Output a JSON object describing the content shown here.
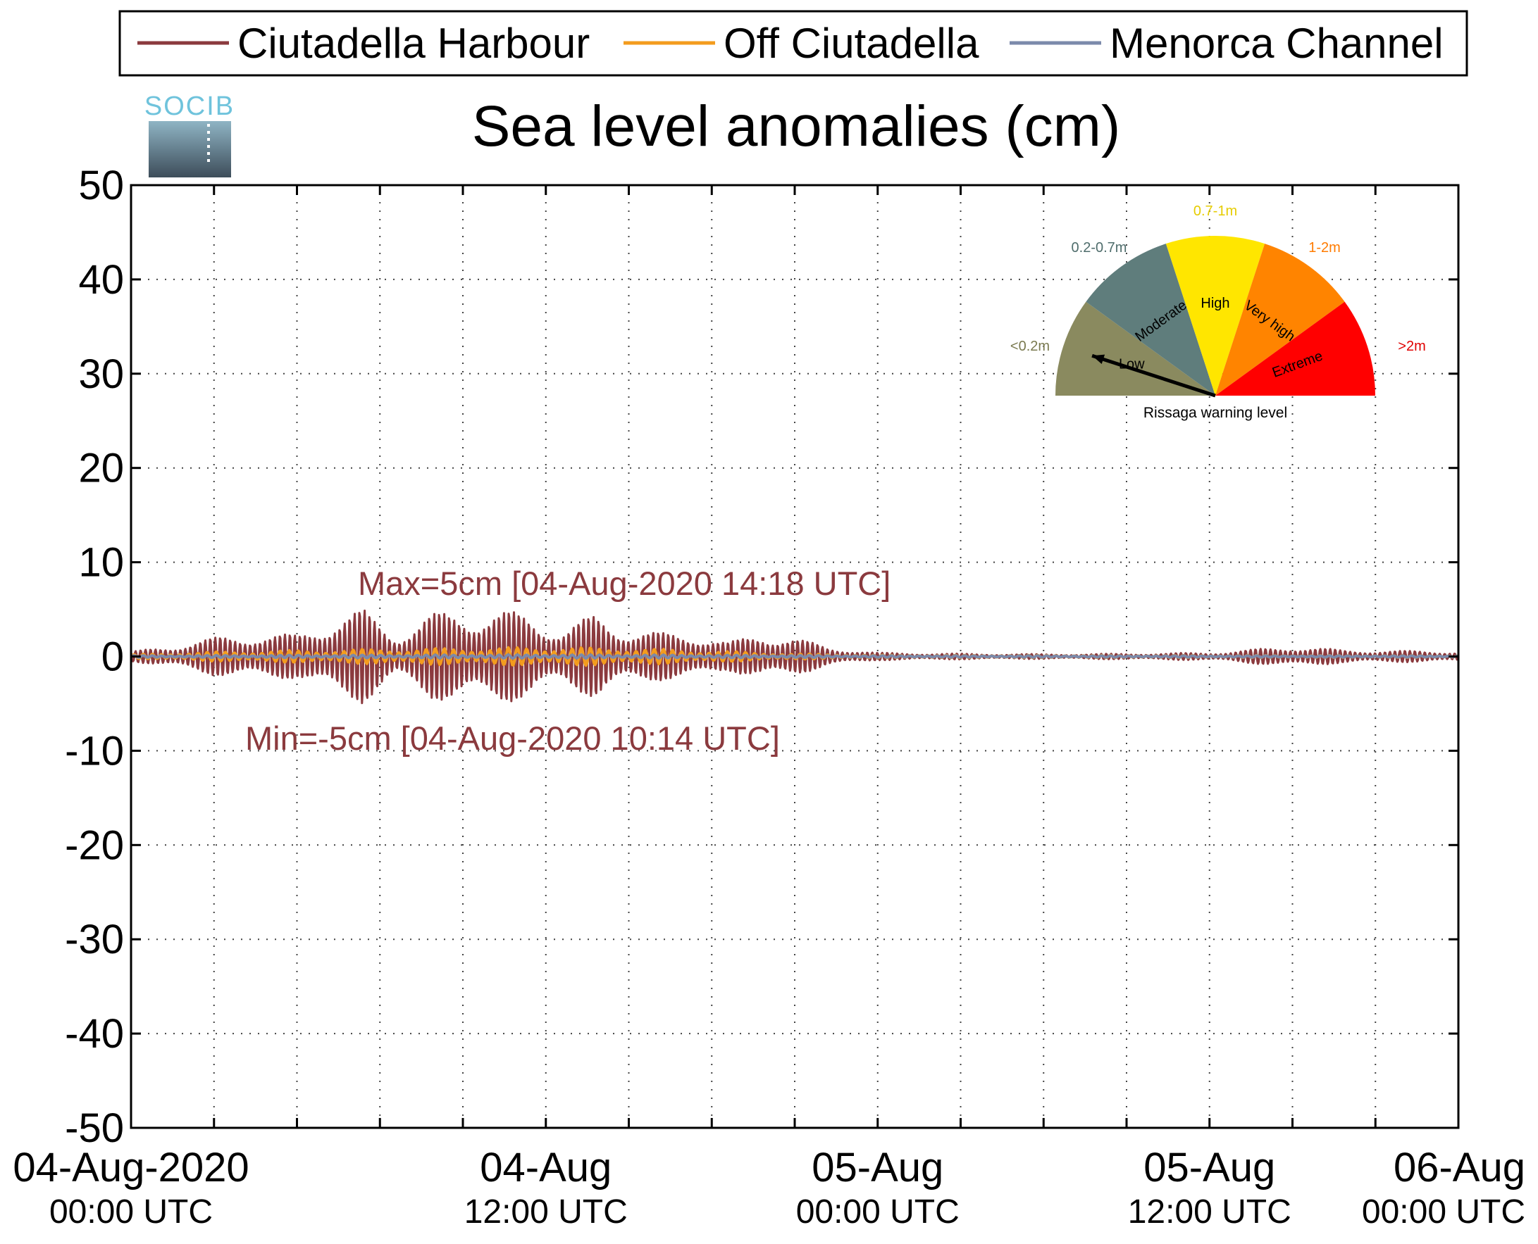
{
  "chart_data": {
    "type": "line",
    "title": "Sea level anomalies (cm)",
    "logo_text": "SOCIB",
    "ylim": [
      -50,
      50
    ],
    "yticks": [
      50,
      40,
      30,
      20,
      10,
      0,
      -10,
      -20,
      -30,
      -40,
      -50
    ],
    "xlim_hours": [
      -10,
      150
    ],
    "x_major_ticks": [
      {
        "hour": 0,
        "line1": "04-Aug-2020",
        "line2": "00:00 UTC"
      },
      {
        "hour": 40,
        "line1": "04-Aug",
        "line2": "12:00 UTC"
      },
      {
        "hour": 80,
        "line1": "05-Aug",
        "line2": "00:00 UTC"
      },
      {
        "hour": 120,
        "line1": "05-Aug",
        "line2": "12:00 UTC"
      },
      {
        "hour": 160,
        "line1": "06-Aug",
        "line2": "00:00 UTC"
      }
    ],
    "x_minor_ticks_hours": [
      0,
      10,
      20,
      30,
      40,
      50,
      60,
      70,
      80,
      90,
      100,
      110,
      120,
      130,
      140
    ],
    "grid": true,
    "legend_position": "top",
    "series": [
      {
        "name": "Ciutadella Harbour",
        "color": "#8b3a3e",
        "envelope": [
          [
            -10,
            0.5
          ],
          [
            -5,
            1.2
          ],
          [
            0,
            2.0
          ],
          [
            5,
            2.5
          ],
          [
            10,
            2.3
          ],
          [
            15,
            4.5
          ],
          [
            18,
            5
          ],
          [
            22,
            2.5
          ],
          [
            26,
            4.5
          ],
          [
            30,
            5.0
          ],
          [
            34,
            5.0
          ],
          [
            38,
            4.5
          ],
          [
            42,
            3.0
          ],
          [
            46,
            4.5
          ],
          [
            50,
            3.0
          ],
          [
            54,
            2.5
          ],
          [
            58,
            2.5
          ],
          [
            62,
            1.5
          ],
          [
            66,
            2.5
          ],
          [
            70,
            2.0
          ],
          [
            74,
            1.0
          ],
          [
            80,
            0.4
          ],
          [
            90,
            0.3
          ],
          [
            100,
            0.25
          ],
          [
            110,
            0.3
          ],
          [
            120,
            0.4
          ],
          [
            126,
            0.8
          ],
          [
            130,
            1.1
          ],
          [
            136,
            0.7
          ],
          [
            142,
            0.6
          ],
          [
            146,
            0.6
          ],
          [
            150,
            0.5
          ]
        ]
      },
      {
        "name": "Off Ciutadella",
        "color": "#f39c1e",
        "envelope": [
          [
            -10,
            0.2
          ],
          [
            0,
            0.5
          ],
          [
            20,
            0.8
          ],
          [
            30,
            0.9
          ],
          [
            40,
            1.0
          ],
          [
            50,
            0.9
          ],
          [
            60,
            0.6
          ],
          [
            70,
            0.3
          ],
          [
            80,
            0.15
          ],
          [
            150,
            0.1
          ]
        ]
      },
      {
        "name": "Menorca Channel",
        "color": "#7b8aab",
        "envelope": [
          [
            -10,
            0.1
          ],
          [
            40,
            0.2
          ],
          [
            80,
            0.1
          ],
          [
            150,
            0.08
          ]
        ]
      }
    ],
    "annotations": [
      {
        "text": "Max=5cm [04-Aug-2020 14:18 UTC]",
        "color": "#8b3a3e",
        "hour": 14.3,
        "value": 5
      },
      {
        "text": "Min=-5cm [04-Aug-2020 10:14 UTC]",
        "color": "#8b3a3e",
        "hour": 10.2,
        "value": -5
      }
    ],
    "gauge": {
      "caption": "Rissaga warning level",
      "needle_level": "Low",
      "segments": [
        {
          "label": "Low",
          "range": "<0.2m",
          "color": "#8a8a5f",
          "range_color": "#7a7a50"
        },
        {
          "label": "Moderate",
          "range": "0.2-0.7m",
          "color": "#5f7d7c",
          "range_color": "#4f6d6c"
        },
        {
          "label": "High",
          "range": "0.7-1m",
          "color": "#ffe600",
          "range_color": "#e6cc00"
        },
        {
          "label": "Very high",
          "range": "1-2m",
          "color": "#ff8400",
          "range_color": "#ff7b00"
        },
        {
          "label": "Extreme",
          "range": ">2m",
          "color": "#ff0000",
          "range_color": "#e00000"
        }
      ]
    }
  }
}
